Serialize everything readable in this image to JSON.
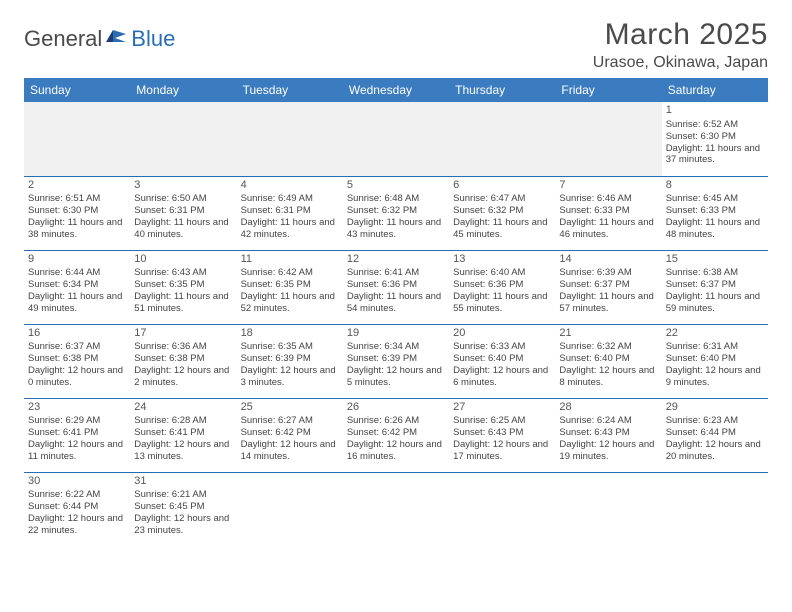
{
  "logo": {
    "part1": "General",
    "part2": "Blue"
  },
  "title": "March 2025",
  "location": "Urasoe, Okinawa, Japan",
  "weekdays": [
    "Sunday",
    "Monday",
    "Tuesday",
    "Wednesday",
    "Thursday",
    "Friday",
    "Saturday"
  ],
  "colors": {
    "header_bg": "#3b7bbf",
    "header_text": "#ffffff",
    "accent": "#2a6db3",
    "body_text": "#444444",
    "title_text": "#4a4a4a"
  },
  "weeks": [
    [
      null,
      null,
      null,
      null,
      null,
      null,
      {
        "n": "1",
        "sr": "6:52 AM",
        "ss": "6:30 PM",
        "dl": "11 hours and 37 minutes."
      }
    ],
    [
      {
        "n": "2",
        "sr": "6:51 AM",
        "ss": "6:30 PM",
        "dl": "11 hours and 38 minutes."
      },
      {
        "n": "3",
        "sr": "6:50 AM",
        "ss": "6:31 PM",
        "dl": "11 hours and 40 minutes."
      },
      {
        "n": "4",
        "sr": "6:49 AM",
        "ss": "6:31 PM",
        "dl": "11 hours and 42 minutes."
      },
      {
        "n": "5",
        "sr": "6:48 AM",
        "ss": "6:32 PM",
        "dl": "11 hours and 43 minutes."
      },
      {
        "n": "6",
        "sr": "6:47 AM",
        "ss": "6:32 PM",
        "dl": "11 hours and 45 minutes."
      },
      {
        "n": "7",
        "sr": "6:46 AM",
        "ss": "6:33 PM",
        "dl": "11 hours and 46 minutes."
      },
      {
        "n": "8",
        "sr": "6:45 AM",
        "ss": "6:33 PM",
        "dl": "11 hours and 48 minutes."
      }
    ],
    [
      {
        "n": "9",
        "sr": "6:44 AM",
        "ss": "6:34 PM",
        "dl": "11 hours and 49 minutes."
      },
      {
        "n": "10",
        "sr": "6:43 AM",
        "ss": "6:35 PM",
        "dl": "11 hours and 51 minutes."
      },
      {
        "n": "11",
        "sr": "6:42 AM",
        "ss": "6:35 PM",
        "dl": "11 hours and 52 minutes."
      },
      {
        "n": "12",
        "sr": "6:41 AM",
        "ss": "6:36 PM",
        "dl": "11 hours and 54 minutes."
      },
      {
        "n": "13",
        "sr": "6:40 AM",
        "ss": "6:36 PM",
        "dl": "11 hours and 55 minutes."
      },
      {
        "n": "14",
        "sr": "6:39 AM",
        "ss": "6:37 PM",
        "dl": "11 hours and 57 minutes."
      },
      {
        "n": "15",
        "sr": "6:38 AM",
        "ss": "6:37 PM",
        "dl": "11 hours and 59 minutes."
      }
    ],
    [
      {
        "n": "16",
        "sr": "6:37 AM",
        "ss": "6:38 PM",
        "dl": "12 hours and 0 minutes."
      },
      {
        "n": "17",
        "sr": "6:36 AM",
        "ss": "6:38 PM",
        "dl": "12 hours and 2 minutes."
      },
      {
        "n": "18",
        "sr": "6:35 AM",
        "ss": "6:39 PM",
        "dl": "12 hours and 3 minutes."
      },
      {
        "n": "19",
        "sr": "6:34 AM",
        "ss": "6:39 PM",
        "dl": "12 hours and 5 minutes."
      },
      {
        "n": "20",
        "sr": "6:33 AM",
        "ss": "6:40 PM",
        "dl": "12 hours and 6 minutes."
      },
      {
        "n": "21",
        "sr": "6:32 AM",
        "ss": "6:40 PM",
        "dl": "12 hours and 8 minutes."
      },
      {
        "n": "22",
        "sr": "6:31 AM",
        "ss": "6:40 PM",
        "dl": "12 hours and 9 minutes."
      }
    ],
    [
      {
        "n": "23",
        "sr": "6:29 AM",
        "ss": "6:41 PM",
        "dl": "12 hours and 11 minutes."
      },
      {
        "n": "24",
        "sr": "6:28 AM",
        "ss": "6:41 PM",
        "dl": "12 hours and 13 minutes."
      },
      {
        "n": "25",
        "sr": "6:27 AM",
        "ss": "6:42 PM",
        "dl": "12 hours and 14 minutes."
      },
      {
        "n": "26",
        "sr": "6:26 AM",
        "ss": "6:42 PM",
        "dl": "12 hours and 16 minutes."
      },
      {
        "n": "27",
        "sr": "6:25 AM",
        "ss": "6:43 PM",
        "dl": "12 hours and 17 minutes."
      },
      {
        "n": "28",
        "sr": "6:24 AM",
        "ss": "6:43 PM",
        "dl": "12 hours and 19 minutes."
      },
      {
        "n": "29",
        "sr": "6:23 AM",
        "ss": "6:44 PM",
        "dl": "12 hours and 20 minutes."
      }
    ],
    [
      {
        "n": "30",
        "sr": "6:22 AM",
        "ss": "6:44 PM",
        "dl": "12 hours and 22 minutes."
      },
      {
        "n": "31",
        "sr": "6:21 AM",
        "ss": "6:45 PM",
        "dl": "12 hours and 23 minutes."
      },
      null,
      null,
      null,
      null,
      null
    ]
  ],
  "labels": {
    "sunrise": "Sunrise:",
    "sunset": "Sunset:",
    "daylight": "Daylight:"
  }
}
